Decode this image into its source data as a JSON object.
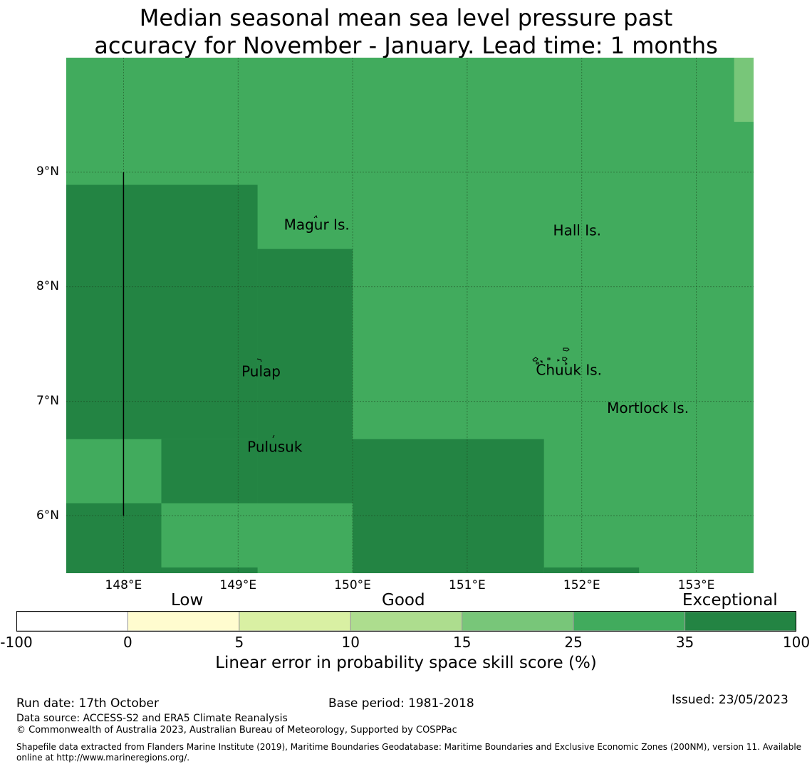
{
  "title": {
    "line1": "Median seasonal mean sea level pressure past",
    "line2": "accuracy for November - January. Lead time: 1 months"
  },
  "map": {
    "lon_range": [
      147.5,
      153.5
    ],
    "lat_range": [
      5.5,
      10.0
    ],
    "lon_ticks": [
      148,
      149,
      150,
      151,
      152,
      153
    ],
    "lon_tick_labels": [
      "148°E",
      "149°E",
      "150°E",
      "151°E",
      "152°E",
      "153°E"
    ],
    "lat_ticks": [
      9,
      8,
      7,
      6
    ],
    "lat_tick_labels": [
      "9°N",
      "8°N",
      "7°N",
      "6°N"
    ],
    "skill_cells": [
      {
        "lon": [
          147.5,
          153.5
        ],
        "lat": [
          5.5,
          10.0
        ],
        "category": "25-35"
      },
      {
        "lon": [
          153.33,
          153.5
        ],
        "lat": [
          9.44,
          10.0
        ],
        "category": "15-25"
      },
      {
        "lon": [
          147.5,
          149.17
        ],
        "lat": [
          6.67,
          8.89
        ],
        "category": "35-100"
      },
      {
        "lon": [
          149.17,
          150.0
        ],
        "lat": [
          6.11,
          8.33
        ],
        "category": "35-100"
      },
      {
        "lon": [
          148.33,
          149.17
        ],
        "lat": [
          6.11,
          6.67
        ],
        "category": "35-100"
      },
      {
        "lon": [
          147.5,
          148.33
        ],
        "lat": [
          5.5,
          6.11
        ],
        "category": "35-100"
      },
      {
        "lon": [
          150.0,
          151.67
        ],
        "lat": [
          5.5,
          6.67
        ],
        "category": "35-100"
      },
      {
        "lon": [
          148.33,
          149.17
        ],
        "lat": [
          5.5,
          5.55
        ],
        "category": "35-100"
      },
      {
        "lon": [
          151.67,
          152.5
        ],
        "lat": [
          5.5,
          5.55
        ],
        "category": "35-100"
      }
    ],
    "boundary_line": {
      "lon": 148.0,
      "lat": [
        6.0,
        9.0
      ]
    },
    "places": [
      {
        "name": "Magur Is.",
        "lon": 149.4,
        "lat": 8.5
      },
      {
        "name": "Hall Is.",
        "lon": 151.75,
        "lat": 8.45
      },
      {
        "name": "Pulap",
        "lon": 149.03,
        "lat": 7.22
      },
      {
        "name": "Chuuk Is.",
        "lon": 151.6,
        "lat": 7.23
      },
      {
        "name": "Mortlock Is.",
        "lon": 152.22,
        "lat": 6.9
      },
      {
        "name": "Pulusuk",
        "lon": 149.08,
        "lat": 6.56
      }
    ]
  },
  "colorbar": {
    "categories": [
      "Low",
      "Good",
      "Exceptional"
    ],
    "boundaries": [
      "-100",
      "0",
      "5",
      "10",
      "15",
      "25",
      "35",
      "100"
    ],
    "colors": [
      "#ffffff",
      "#fffccf",
      "#d9f0a3",
      "#addd8e",
      "#78c679",
      "#41ab5d",
      "#238443"
    ],
    "label": "Linear error in probability space skill score (%)"
  },
  "footer": {
    "run_date": "Run date: 17th October",
    "base_period": "Base period: 1981-2018",
    "issued": "Issued: 23/05/2023",
    "data_source": "Data source: ACCESS-S2 and ERA5 Climate Reanalysis",
    "copyright": "© Commonwealth of Australia 2023, Australian Bureau of Meteorology, Supported by COSPPac",
    "shapefile_1": "Shapefile data extracted from Flanders Marine Institute (2019), Maritime Boundaries Geodatabase: Maritime Boundaries and Exclusive Economic Zones (200NM), version 11. Available",
    "shapefile_2": "online at http://www.marineregions.org/."
  }
}
